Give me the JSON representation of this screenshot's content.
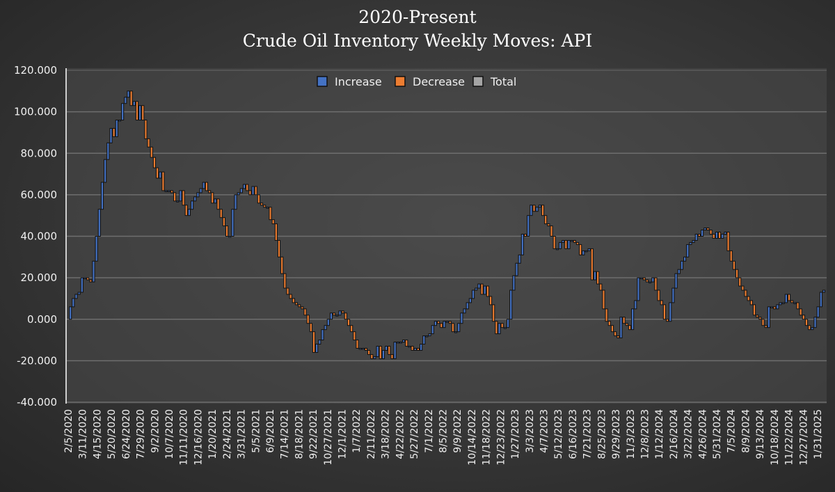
{
  "chart_data": {
    "type": "waterfall",
    "title": "2020-Present",
    "subtitle": "Crude Oil Inventory Weekly Moves: API",
    "xlabel": "",
    "ylabel": "",
    "ylim": [
      -40,
      120
    ],
    "yticks": [
      "120.000",
      "100.000",
      "80.000",
      "60.000",
      "40.000",
      "20.000",
      "0.000",
      "-20.000",
      "-40.000"
    ],
    "ytick_values": [
      120,
      100,
      80,
      60,
      40,
      20,
      0,
      -20,
      -40
    ],
    "grid": true,
    "legend_position": "top-center",
    "legend": [
      {
        "name": "Increase",
        "color": "#4472c4"
      },
      {
        "name": "Decrease",
        "color": "#ed7d31"
      },
      {
        "name": "Total",
        "color": "#a5a5a5"
      }
    ],
    "xticks": [
      "2/5/2020",
      "3/11/2020",
      "4/15/2020",
      "5/20/2020",
      "6/24/2020",
      "7/29/2020",
      "9/2/2020",
      "10/7/2020",
      "11/11/2020",
      "12/16/2020",
      "1/20/2021",
      "2/24/2021",
      "3/31/2021",
      "5/5/2021",
      "6/9/2021",
      "7/14/2021",
      "8/18/2021",
      "9/22/2021",
      "10/27/2021",
      "12/1/2021",
      "1/7/2022",
      "2/11/2022",
      "3/18/2022",
      "4/22/2022",
      "5/27/2022",
      "7/1/2022",
      "8/5/2022",
      "9/9/2022",
      "10/14/2022",
      "11/18/2022",
      "12/23/2022",
      "1/27/2023",
      "3/3/2023",
      "4/7/2023",
      "5/12/2023",
      "6/16/2023",
      "7/21/2023",
      "8/25/2023",
      "9/29/2023",
      "11/3/2023",
      "12/8/2023",
      "1/12/2024",
      "2/16/2024",
      "3/22/2024",
      "4/26/2024",
      "5/31/2024",
      "7/5/2024",
      "8/9/2024",
      "9/13/2024",
      "10/18/2024",
      "11/22/2024",
      "12/27/2024",
      "1/31/2025"
    ],
    "cumulative_levels_weekly": [
      0,
      6,
      10,
      12,
      13,
      20,
      20,
      19,
      18,
      28,
      40,
      53,
      66,
      77,
      85,
      92,
      88,
      96,
      96,
      104,
      107,
      110,
      103,
      105,
      96,
      103,
      96,
      87,
      83,
      78,
      73,
      68,
      71,
      62,
      62,
      62,
      61,
      57,
      57,
      62,
      55,
      50,
      53,
      57,
      59,
      61,
      63,
      66,
      62,
      61,
      56,
      58,
      53,
      49,
      45,
      40,
      40,
      53,
      60,
      61,
      63,
      65,
      62,
      60,
      64,
      60,
      56,
      55,
      54,
      54,
      48,
      46,
      38,
      30,
      22,
      15,
      12,
      10,
      8,
      7,
      6,
      5,
      2,
      -2,
      -6,
      -16,
      -12,
      -10,
      -5,
      -3,
      0,
      3,
      2,
      2,
      4,
      3,
      0,
      -3,
      -6,
      -10,
      -14,
      -14,
      -14,
      -15,
      -17,
      -19,
      -18,
      -13,
      -19,
      -15,
      -13,
      -17,
      -19,
      -11,
      -11,
      -11,
      -10,
      -13,
      -13,
      -15,
      -14,
      -15,
      -12,
      -8,
      -8,
      -7,
      -3,
      -1,
      -2,
      -4,
      -1,
      -1,
      -2,
      -6,
      -6,
      -2,
      3,
      5,
      8,
      10,
      14,
      15,
      17,
      12,
      16,
      11,
      7,
      -1,
      -7,
      -2,
      -4,
      -4,
      0,
      14,
      21,
      27,
      31,
      41,
      40,
      50,
      55,
      52,
      54,
      55,
      50,
      46,
      45,
      40,
      34,
      34,
      37,
      38,
      34,
      38,
      38,
      37,
      36,
      31,
      33,
      33,
      34,
      19,
      23,
      17,
      14,
      5,
      -1,
      -3,
      -6,
      -8,
      -9,
      1,
      -2,
      -3,
      -5,
      5,
      9,
      20,
      20,
      19,
      18,
      18,
      20,
      14,
      9,
      7,
      0,
      -1,
      8,
      15,
      22,
      24,
      28,
      30,
      36,
      37,
      38,
      41,
      40,
      43,
      44,
      43,
      41,
      39,
      42,
      39,
      41,
      42,
      33,
      28,
      24,
      20,
      16,
      14,
      11,
      9,
      7,
      2,
      1,
      0,
      -3,
      -4,
      6,
      6,
      5,
      7,
      8,
      8,
      12,
      9,
      8,
      8,
      5,
      2,
      0,
      -3,
      -5,
      -4,
      1,
      6,
      13,
      14
    ]
  }
}
